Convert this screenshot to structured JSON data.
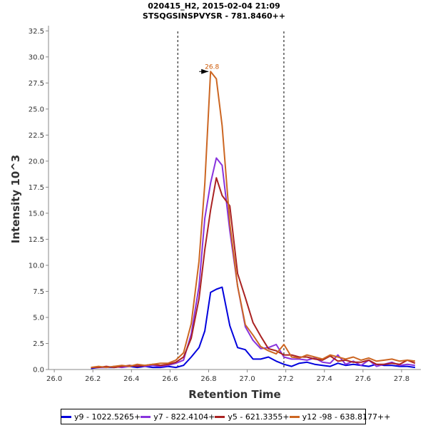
{
  "chart_data": {
    "type": "line",
    "title": "020415_H2, 2015-02-04 21:09",
    "subtitle": "STSQGSINSPVYSR - 781.8460++",
    "xlabel": "Retention Time",
    "ylabel": "Intensity 10^3",
    "xlim": [
      25.97,
      27.9
    ],
    "ylim": [
      0,
      33
    ],
    "xticks": [
      "26.0",
      "26.2",
      "26.4",
      "26.6",
      "26.8",
      "27.0",
      "27.2",
      "27.4",
      "27.6",
      "27.8"
    ],
    "xtick_values": [
      26.0,
      26.2,
      26.4,
      26.6,
      26.8,
      27.0,
      27.2,
      27.4,
      27.6,
      27.8
    ],
    "yticks": [
      "0.0",
      "2.5",
      "5.0",
      "7.5",
      "10.0",
      "12.5",
      "15.0",
      "17.5",
      "20.0",
      "22.5",
      "25.0",
      "27.5",
      "30.0",
      "32.5"
    ],
    "ytick_values": [
      0,
      2.5,
      5,
      7.5,
      10,
      12.5,
      15,
      17.5,
      20,
      22.5,
      25,
      27.5,
      30,
      32.5
    ],
    "boundaries": [
      26.64,
      27.19
    ],
    "peak_annotation": {
      "label": "26.8",
      "x": 26.81,
      "y": 28.6,
      "color": "#cc5500"
    },
    "series": [
      {
        "name": "y9 - 1022.5265+",
        "color": "#0000dd",
        "x": [
          26.19,
          26.23,
          26.27,
          26.31,
          26.35,
          26.39,
          26.43,
          26.47,
          26.51,
          26.55,
          26.59,
          26.63,
          26.67,
          26.71,
          26.75,
          26.78,
          26.81,
          26.84,
          26.87,
          26.91,
          26.95,
          26.99,
          27.03,
          27.07,
          27.11,
          27.15,
          27.19,
          27.23,
          27.27,
          27.31,
          27.35,
          27.39,
          27.43,
          27.47,
          27.51,
          27.55,
          27.59,
          27.63,
          27.67,
          27.71,
          27.75,
          27.79,
          27.83,
          27.87
        ],
        "values": [
          0.1,
          0.2,
          0.2,
          0.2,
          0.3,
          0.3,
          0.2,
          0.3,
          0.2,
          0.2,
          0.3,
          0.2,
          0.4,
          1.2,
          2.1,
          3.7,
          7.4,
          7.7,
          7.9,
          4.2,
          2.1,
          1.9,
          1.0,
          1.0,
          1.2,
          0.8,
          0.5,
          0.3,
          0.6,
          0.7,
          0.5,
          0.4,
          0.3,
          0.6,
          0.4,
          0.5,
          0.4,
          0.3,
          0.5,
          0.4,
          0.4,
          0.3,
          0.3,
          0.2
        ]
      },
      {
        "name": "y7 - 822.4104+",
        "color": "#8833dd",
        "x": [
          26.19,
          26.23,
          26.27,
          26.31,
          26.35,
          26.39,
          26.43,
          26.47,
          26.51,
          26.55,
          26.59,
          26.63,
          26.67,
          26.71,
          26.75,
          26.78,
          26.81,
          26.84,
          26.87,
          26.91,
          26.95,
          26.99,
          27.03,
          27.07,
          27.11,
          27.15,
          27.19,
          27.23,
          27.27,
          27.31,
          27.35,
          27.39,
          27.43,
          27.47,
          27.51,
          27.55,
          27.59,
          27.63,
          27.67,
          27.71,
          27.75,
          27.79,
          27.83,
          27.87
        ],
        "values": [
          0.2,
          0.2,
          0.2,
          0.3,
          0.2,
          0.3,
          0.4,
          0.3,
          0.4,
          0.3,
          0.4,
          0.6,
          0.9,
          3.4,
          8.0,
          14.5,
          17.9,
          20.3,
          19.6,
          13.3,
          8.0,
          4.1,
          2.8,
          2.0,
          2.1,
          2.4,
          1.2,
          1.0,
          1.0,
          0.9,
          1.1,
          0.7,
          0.6,
          1.4,
          0.5,
          0.8,
          0.4,
          0.9,
          0.3,
          0.5,
          0.7,
          0.4,
          0.5,
          0.4
        ]
      },
      {
        "name": "y5 - 621.3355+",
        "color": "#aa2222",
        "x": [
          26.19,
          26.23,
          26.27,
          26.31,
          26.35,
          26.39,
          26.43,
          26.47,
          26.51,
          26.55,
          26.59,
          26.63,
          26.67,
          26.71,
          26.75,
          26.78,
          26.81,
          26.84,
          26.87,
          26.91,
          26.95,
          26.99,
          27.03,
          27.07,
          27.11,
          27.15,
          27.19,
          27.23,
          27.27,
          27.31,
          27.35,
          27.39,
          27.43,
          27.47,
          27.51,
          27.55,
          27.59,
          27.63,
          27.67,
          27.71,
          27.75,
          27.79,
          27.83,
          27.87
        ],
        "values": [
          0.2,
          0.2,
          0.3,
          0.2,
          0.3,
          0.4,
          0.3,
          0.4,
          0.5,
          0.4,
          0.5,
          0.7,
          1.2,
          3.0,
          6.8,
          11.5,
          15.3,
          18.4,
          16.7,
          15.7,
          9.2,
          6.9,
          4.5,
          3.2,
          2.0,
          1.8,
          1.4,
          1.4,
          1.2,
          1.2,
          1.0,
          0.9,
          1.3,
          0.8,
          0.9,
          0.7,
          0.7,
          0.9,
          0.5,
          0.5,
          0.6,
          0.5,
          0.9,
          0.6
        ]
      },
      {
        "name": "y12 -98 - 638.8177++",
        "color": "#cc6622",
        "x": [
          26.19,
          26.23,
          26.27,
          26.31,
          26.35,
          26.39,
          26.43,
          26.47,
          26.51,
          26.55,
          26.59,
          26.63,
          26.67,
          26.71,
          26.75,
          26.78,
          26.81,
          26.84,
          26.87,
          26.91,
          26.95,
          26.99,
          27.03,
          27.07,
          27.11,
          27.15,
          27.19,
          27.23,
          27.27,
          27.31,
          27.35,
          27.39,
          27.43,
          27.47,
          27.51,
          27.55,
          27.59,
          27.63,
          27.67,
          27.71,
          27.75,
          27.79,
          27.83,
          27.87
        ],
        "values": [
          0.2,
          0.3,
          0.2,
          0.3,
          0.4,
          0.3,
          0.5,
          0.4,
          0.5,
          0.6,
          0.6,
          0.9,
          1.6,
          4.4,
          10.4,
          17.8,
          28.6,
          27.9,
          23.4,
          14.0,
          8.0,
          4.3,
          3.3,
          2.2,
          1.8,
          1.5,
          2.4,
          1.2,
          1.1,
          1.4,
          1.2,
          1.0,
          1.4,
          1.2,
          1.0,
          1.2,
          0.9,
          1.1,
          0.8,
          0.9,
          1.0,
          0.8,
          0.9,
          0.8
        ]
      }
    ]
  }
}
